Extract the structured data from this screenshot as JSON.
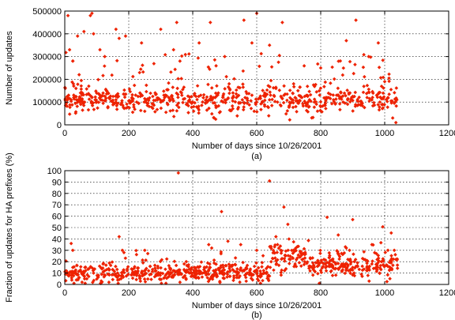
{
  "chart_data": [
    {
      "id": "a",
      "type": "scatter",
      "xlabel": "Number of days since 10/26/2001",
      "ylabel": "Number of updates",
      "caption": "(a)",
      "xlim": [
        0,
        1200
      ],
      "ylim": [
        0,
        500000
      ],
      "x_ticks": [
        "0",
        "200",
        "400",
        "600",
        "800",
        "1000",
        "1200"
      ],
      "y_ticks": [
        "0",
        "100000",
        "200000",
        "300000",
        "400000",
        "500000"
      ],
      "grid": true,
      "marker_color": "#ee2200",
      "bulk_range": {
        "x": [
          0,
          1040
        ],
        "y": [
          60000,
          180000
        ]
      },
      "series": [
        {
          "x": [
            5,
            12,
            20,
            28,
            35,
            45,
            50,
            55,
            62,
            75,
            85,
            95,
            100,
            110,
            120,
            130,
            140,
            150,
            160,
            168,
            175,
            185,
            200,
            210,
            225,
            235,
            250,
            260,
            275,
            290,
            300,
            310,
            325,
            340,
            355,
            365,
            375,
            390,
            400,
            410,
            425,
            440,
            455,
            470,
            480,
            495,
            510,
            525,
            540,
            555,
            570,
            585,
            600,
            610,
            625,
            640,
            655,
            665,
            680,
            695,
            705,
            720,
            735,
            750,
            765,
            780,
            790,
            800,
            815,
            825,
            840,
            855,
            870,
            885,
            900,
            915,
            930,
            945,
            960,
            975,
            985,
            995,
            1010,
            1020,
            1030,
            1038
          ],
          "y": [
            95000,
            130000,
            110000,
            120000,
            160000,
            105000,
            90000,
            140000,
            100000,
            170000,
            120000,
            110000,
            100000,
            130000,
            95000,
            150000,
            115000,
            100000,
            110000,
            125000,
            90000,
            135000,
            105000,
            120000,
            100000,
            140000,
            115000,
            95000,
            125000,
            110000,
            100000,
            130000,
            120000,
            105000,
            95000,
            140000,
            115000,
            110000,
            100000,
            125000,
            130000,
            95000,
            110000,
            120000,
            140000,
            100000,
            115000,
            105000,
            125000,
            110000,
            95000,
            130000,
            100000,
            120000,
            140000,
            110000,
            125000,
            100000,
            115000,
            135000,
            95000,
            120000,
            105000,
            125000,
            110000,
            100000,
            60000,
            80000,
            95000,
            120000,
            110000,
            130000,
            100000,
            115000,
            125000,
            105000,
            95000,
            120000,
            110000,
            130000,
            100000,
            115000,
            120000,
            105000,
            95000,
            110000
          ]
        }
      ],
      "outliers": {
        "x": [
          10,
          15,
          25,
          40,
          60,
          80,
          85,
          90,
          110,
          125,
          160,
          170,
          190,
          240,
          300,
          340,
          350,
          360,
          420,
          455,
          500,
          560,
          585,
          600,
          640,
          680,
          800,
          880,
          910,
          950,
          980,
          1000,
          1025,
          1035
        ],
        "y": [
          480000,
          330000,
          280000,
          390000,
          410000,
          480000,
          490000,
          400000,
          330000,
          300000,
          420000,
          380000,
          390000,
          360000,
          420000,
          330000,
          450000,
          280000,
          360000,
          450000,
          300000,
          460000,
          360000,
          490000,
          350000,
          450000,
          250000,
          370000,
          460000,
          300000,
          360000,
          190000,
          30000,
          10000
        ]
      }
    },
    {
      "id": "b",
      "type": "scatter",
      "xlabel": "Number of days since 10/26/2001",
      "ylabel": "Fraction of updates for HA prefixes (%)",
      "caption": "(b)",
      "xlim": [
        0,
        1200
      ],
      "ylim": [
        0,
        100
      ],
      "x_ticks": [
        "0",
        "200",
        "400",
        "600",
        "800",
        "1000",
        "1200"
      ],
      "y_ticks": [
        "0",
        "10",
        "20",
        "30",
        "40",
        "50",
        "60",
        "70",
        "80",
        "90",
        "100"
      ],
      "grid": true,
      "marker_color": "#ee2200",
      "series": [
        {
          "x": [
            5,
            15,
            25,
            35,
            45,
            55,
            65,
            75,
            90,
            105,
            120,
            135,
            150,
            165,
            180,
            195,
            210,
            225,
            240,
            255,
            270,
            285,
            300,
            315,
            330,
            345,
            360,
            375,
            390,
            405,
            420,
            435,
            450,
            465,
            480,
            495,
            510,
            525,
            540,
            555,
            570,
            585,
            600,
            615,
            630,
            645,
            655,
            665,
            675,
            690,
            705,
            720,
            735,
            750,
            765,
            780,
            795,
            810,
            825,
            840,
            855,
            870,
            885,
            900,
            915,
            930,
            945,
            960,
            975,
            990,
            1005,
            1020,
            1035
          ],
          "y": [
            12,
            8,
            15,
            10,
            6,
            9,
            12,
            7,
            10,
            8,
            11,
            9,
            13,
            10,
            8,
            12,
            9,
            11,
            10,
            14,
            9,
            12,
            10,
            8,
            13,
            11,
            9,
            12,
            10,
            15,
            11,
            13,
            9,
            12,
            14,
            10,
            11,
            13,
            9,
            12,
            10,
            8,
            11,
            9,
            14,
            20,
            28,
            35,
            30,
            25,
            22,
            18,
            24,
            20,
            16,
            12,
            18,
            22,
            16,
            20,
            14,
            18,
            22,
            15,
            19,
            16,
            21,
            18,
            15,
            20,
            17,
            19,
            22
          ]
        }
      ],
      "outliers": {
        "x": [
          20,
          25,
          170,
          180,
          185,
          250,
          355,
          450,
          490,
          510,
          550,
          600,
          640,
          660,
          685,
          720,
          820,
          880,
          890,
          900,
          960,
          1010,
          1030
        ],
        "y": [
          36,
          30,
          42,
          30,
          28,
          30,
          98,
          35,
          64,
          38,
          35,
          30,
          91,
          42,
          68,
          30,
          59,
          32,
          30,
          57,
          35,
          30,
          30
        ]
      }
    }
  ]
}
